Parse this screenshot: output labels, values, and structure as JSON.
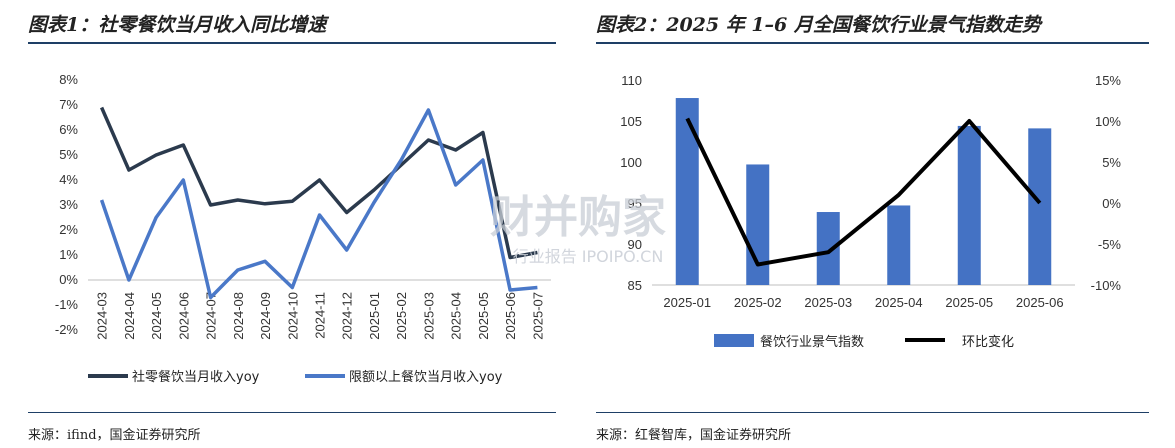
{
  "left": {
    "title": "图表1：社零餐饮当月收入同比增速",
    "source": "来源：ifind，国金证券研究所"
  },
  "right": {
    "title": "图表2：2025 年 1–6 月全国餐饮行业景气指数走势",
    "source": "来源：红餐智库，国金证券研究所"
  },
  "watermark": {
    "main": "财并购家",
    "sub": "行业报告 IPOIPO.CN"
  },
  "colors": {
    "dark": "#2b3a4d",
    "blue": "#4a78c8",
    "bar": "#4472c4",
    "black": "#000000",
    "rule": "#1e3f66"
  },
  "chart_data": [
    {
      "type": "line",
      "title": "图表1：社零餐饮当月收入同比增速",
      "x": [
        "2024-03",
        "2024-04",
        "2024-05",
        "2024-06",
        "2024-07",
        "2024-08",
        "2024-09",
        "2024-10",
        "2024-11",
        "2024-12",
        "2025-01",
        "2025-02",
        "2025-03",
        "2025-04",
        "2025-05",
        "2025-06",
        "2025-07"
      ],
      "yticks": [
        "8%",
        "7%",
        "6%",
        "5%",
        "4%",
        "3%",
        "2%",
        "1%",
        "0%",
        "-1%",
        "-2%"
      ],
      "ylim": [
        -2,
        8
      ],
      "series": [
        {
          "name": "社零餐饮当月收入yoy",
          "values": [
            6.9,
            4.4,
            5.0,
            5.4,
            3.0,
            3.2,
            3.05,
            3.15,
            4.0,
            2.7,
            3.6,
            4.6,
            5.6,
            5.2,
            5.9,
            0.9,
            1.1
          ]
        },
        {
          "name": "限额以上餐饮当月收入yoy",
          "values": [
            3.2,
            0.0,
            2.5,
            4.0,
            -0.7,
            0.4,
            0.75,
            -0.3,
            2.6,
            1.2,
            3.1,
            4.8,
            6.8,
            3.8,
            4.8,
            -0.4,
            -0.3
          ]
        }
      ],
      "legend": "bottom"
    },
    {
      "type": "bar+line",
      "title": "图表2：2025 年 1–6 月全国餐饮行业景气指数走势",
      "categories": [
        "2025-01",
        "2025-02",
        "2025-03",
        "2025-04",
        "2025-05",
        "2025-06"
      ],
      "left_yticks": [
        "110",
        "105",
        "100",
        "95",
        "90",
        "85"
      ],
      "left_ylim": [
        85,
        110
      ],
      "right_yticks": [
        "15%",
        "10%",
        "5%",
        "0%",
        "-5%",
        "-10%"
      ],
      "right_ylim": [
        -10,
        15
      ],
      "bars": {
        "name": "餐饮行业景气指数",
        "values": [
          107.8,
          99.7,
          93.9,
          94.7,
          104.4,
          104.1
        ]
      },
      "line": {
        "name": "环比变化",
        "values": [
          10.3,
          -7.5,
          -6.0,
          1.0,
          10.0,
          0.0
        ]
      },
      "legend": "bottom"
    }
  ]
}
